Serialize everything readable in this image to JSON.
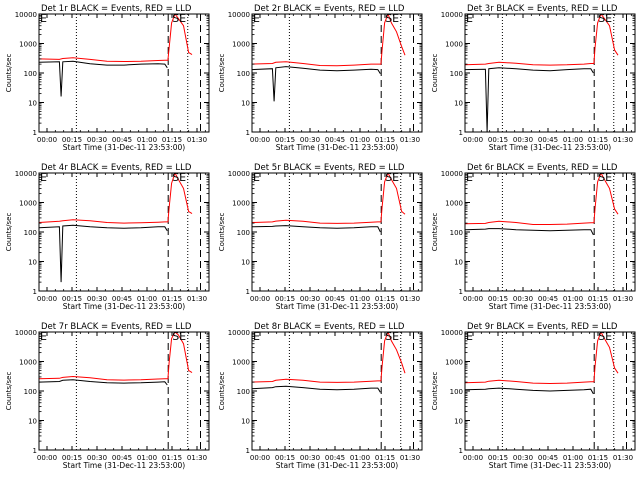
{
  "figure": {
    "x_tick_labels": [
      "00:00",
      "00:15",
      "00:30",
      "00:45",
      "01:00",
      "01:15",
      "01:30"
    ],
    "y_tick_labels": [
      "1",
      "10",
      "100",
      "1000",
      "10000"
    ],
    "xlabel": "Start Time (31-Dec-11 23:53:00)",
    "ylabel": "Counts/sec",
    "markers": {
      "E": "E",
      "SE": "SE"
    },
    "colors": {
      "events": "#000000",
      "lld": "#ff0000",
      "axes": "#000000",
      "background": "#ffffff"
    }
  },
  "chart_data": [
    {
      "type": "line",
      "title": "Det 1r BLACK = Events, RED = LLD",
      "xlabel": "Start Time (31-Dec-11 23:53:00)",
      "ylabel": "Counts/sec",
      "x_unit": "minutes after 23:53:00",
      "xlim": [
        0,
        100
      ],
      "ylim": [
        1,
        10000
      ],
      "yscale": "log",
      "vlines_dotted": [
        22,
        87.5
      ],
      "vlines_dashed": [
        76,
        95
      ],
      "annotations": [
        "E",
        "SE"
      ],
      "series": [
        {
          "name": "Events",
          "color": "#000000",
          "x": [
            0,
            12,
            13,
            14,
            20,
            30,
            40,
            50,
            60,
            70,
            74,
            75.5
          ],
          "y": [
            230,
            240,
            16,
            240,
            250,
            205,
            185,
            185,
            200,
            205,
            200,
            150
          ]
        },
        {
          "name": "LLD",
          "color": "#ff0000",
          "x": [
            0,
            12,
            14,
            20,
            30,
            40,
            50,
            60,
            70,
            74,
            75.8,
            76.5,
            78,
            80,
            82,
            85,
            88,
            90
          ],
          "y": [
            300,
            290,
            310,
            330,
            290,
            250,
            245,
            250,
            265,
            270,
            270,
            700,
            5000,
            10000,
            7000,
            4000,
            500,
            420
          ]
        }
      ]
    },
    {
      "type": "line",
      "title": "Det 2r BLACK = Events, RED = LLD",
      "xlabel": "Start Time (31-Dec-11 23:53:00)",
      "ylabel": "Counts/sec",
      "x_unit": "minutes after 23:53:00",
      "xlim": [
        0,
        100
      ],
      "ylim": [
        1,
        10000
      ],
      "yscale": "log",
      "vlines_dotted": [
        22,
        87.5
      ],
      "vlines_dashed": [
        76,
        95
      ],
      "annotations": [
        "E",
        "SE"
      ],
      "series": [
        {
          "name": "Events",
          "color": "#000000",
          "x": [
            0,
            12,
            13,
            14,
            20,
            30,
            40,
            50,
            60,
            70,
            74,
            75.5
          ],
          "y": [
            130,
            140,
            11,
            150,
            165,
            145,
            125,
            120,
            125,
            135,
            130,
            95
          ]
        },
        {
          "name": "LLD",
          "color": "#ff0000",
          "x": [
            0,
            12,
            14,
            20,
            30,
            40,
            50,
            60,
            70,
            74,
            75.8,
            76.5,
            78,
            80,
            82,
            85,
            88,
            90
          ],
          "y": [
            200,
            210,
            230,
            240,
            210,
            180,
            175,
            185,
            200,
            200,
            200,
            600,
            5000,
            10000,
            5000,
            2500,
            800,
            400
          ]
        }
      ]
    },
    {
      "type": "line",
      "title": "Det 3r BLACK = Events, RED = LLD",
      "xlabel": "Start Time (31-Dec-11 23:53:00)",
      "ylabel": "Counts/sec",
      "x_unit": "minutes after 23:53:00",
      "xlim": [
        0,
        100
      ],
      "ylim": [
        1,
        10000
      ],
      "yscale": "log",
      "vlines_dotted": [
        22,
        87.5
      ],
      "vlines_dashed": [
        76,
        95
      ],
      "annotations": [
        "E",
        "SE"
      ],
      "series": [
        {
          "name": "Events",
          "color": "#000000",
          "x": [
            0,
            12,
            13,
            14,
            20,
            30,
            40,
            50,
            60,
            70,
            74,
            75.5
          ],
          "y": [
            130,
            135,
            1,
            140,
            150,
            140,
            125,
            120,
            130,
            140,
            140,
            100
          ]
        },
        {
          "name": "LLD",
          "color": "#ff0000",
          "x": [
            0,
            12,
            14,
            20,
            30,
            40,
            50,
            60,
            70,
            74,
            75.8,
            76.5,
            78,
            80,
            82,
            85,
            88,
            90
          ],
          "y": [
            190,
            200,
            210,
            230,
            215,
            190,
            185,
            190,
            200,
            210,
            210,
            700,
            5000,
            10000,
            7000,
            4000,
            600,
            400
          ]
        }
      ]
    },
    {
      "type": "line",
      "title": "Det 4r BLACK = Events, RED = LLD",
      "xlabel": "Start Time (31-Dec-11 23:53:00)",
      "ylabel": "Counts/sec",
      "x_unit": "minutes after 23:53:00",
      "xlim": [
        0,
        100
      ],
      "ylim": [
        1,
        10000
      ],
      "yscale": "log",
      "vlines_dotted": [
        22,
        87.5
      ],
      "vlines_dashed": [
        76,
        95
      ],
      "annotations": [
        "E",
        "SE"
      ],
      "series": [
        {
          "name": "Events",
          "color": "#000000",
          "x": [
            0,
            12,
            13,
            14,
            20,
            30,
            40,
            50,
            60,
            70,
            74,
            75.5
          ],
          "y": [
            140,
            150,
            2,
            160,
            170,
            150,
            140,
            135,
            140,
            150,
            150,
            110
          ]
        },
        {
          "name": "LLD",
          "color": "#ff0000",
          "x": [
            0,
            12,
            14,
            20,
            30,
            40,
            50,
            60,
            70,
            74,
            75.8,
            76.5,
            78,
            80,
            82,
            85,
            88,
            90
          ],
          "y": [
            210,
            230,
            240,
            260,
            240,
            210,
            200,
            205,
            215,
            220,
            220,
            650,
            4500,
            10000,
            6000,
            3000,
            500,
            420
          ]
        }
      ]
    },
    {
      "type": "line",
      "title": "Det 5r BLACK = Events, RED = LLD",
      "xlabel": "Start Time (31-Dec-11 23:53:00)",
      "ylabel": "Counts/sec",
      "x_unit": "minutes after 23:53:00",
      "xlim": [
        0,
        100
      ],
      "ylim": [
        1,
        10000
      ],
      "yscale": "log",
      "vlines_dotted": [
        22,
        87.5
      ],
      "vlines_dashed": [
        76,
        95
      ],
      "annotations": [
        "E",
        "SE"
      ],
      "series": [
        {
          "name": "Events",
          "color": "#000000",
          "x": [
            0,
            12,
            14,
            20,
            30,
            40,
            50,
            60,
            70,
            74,
            75.5
          ],
          "y": [
            150,
            155,
            160,
            165,
            150,
            140,
            135,
            140,
            150,
            150,
            100
          ]
        },
        {
          "name": "LLD",
          "color": "#ff0000",
          "x": [
            0,
            12,
            14,
            20,
            30,
            40,
            50,
            60,
            70,
            74,
            75.8,
            76.5,
            78,
            80,
            82,
            85,
            88,
            90
          ],
          "y": [
            210,
            220,
            235,
            250,
            230,
            200,
            195,
            200,
            215,
            220,
            220,
            700,
            5000,
            10000,
            6000,
            3000,
            500,
            400
          ]
        }
      ]
    },
    {
      "type": "line",
      "title": "Det 6r BLACK = Events, RED = LLD",
      "xlabel": "Start Time (31-Dec-11 23:53:00)",
      "ylabel": "Counts/sec",
      "x_unit": "minutes after 23:53:00",
      "xlim": [
        0,
        100
      ],
      "ylim": [
        1,
        10000
      ],
      "yscale": "log",
      "vlines_dotted": [
        22,
        87.5
      ],
      "vlines_dashed": [
        76,
        95
      ],
      "annotations": [
        "E",
        "SE"
      ],
      "series": [
        {
          "name": "Events",
          "color": "#000000",
          "x": [
            0,
            12,
            14,
            20,
            30,
            40,
            50,
            60,
            70,
            74,
            75.5
          ],
          "y": [
            120,
            125,
            130,
            130,
            120,
            115,
            110,
            115,
            120,
            120,
            80
          ]
        },
        {
          "name": "LLD",
          "color": "#ff0000",
          "x": [
            0,
            12,
            14,
            20,
            30,
            40,
            50,
            60,
            70,
            74,
            75.8,
            76.5,
            78,
            80,
            82,
            85,
            88,
            90
          ],
          "y": [
            190,
            195,
            210,
            230,
            210,
            180,
            180,
            185,
            200,
            205,
            205,
            600,
            5000,
            10000,
            6000,
            3000,
            600,
            400
          ]
        }
      ]
    },
    {
      "type": "line",
      "title": "Det 7r BLACK = Events, RED = LLD",
      "xlabel": "Start Time (31-Dec-11 23:53:00)",
      "ylabel": "Counts/sec",
      "x_unit": "minutes after 23:53:00",
      "xlim": [
        0,
        100
      ],
      "ylim": [
        1,
        10000
      ],
      "yscale": "log",
      "vlines_dotted": [
        22,
        87.5
      ],
      "vlines_dashed": [
        76,
        95
      ],
      "annotations": [
        "E",
        "SE"
      ],
      "series": [
        {
          "name": "Events",
          "color": "#000000",
          "x": [
            0,
            12,
            14,
            20,
            30,
            40,
            50,
            60,
            70,
            74,
            75.5
          ],
          "y": [
            200,
            210,
            230,
            240,
            210,
            190,
            185,
            190,
            200,
            205,
            160
          ]
        },
        {
          "name": "LLD",
          "color": "#ff0000",
          "x": [
            0,
            12,
            14,
            20,
            30,
            40,
            50,
            60,
            70,
            74,
            75.8,
            76.5,
            78,
            80,
            82,
            85,
            88,
            90
          ],
          "y": [
            260,
            270,
            290,
            310,
            280,
            240,
            235,
            240,
            255,
            260,
            260,
            900,
            6000,
            10000,
            8000,
            4000,
            500,
            420
          ]
        }
      ]
    },
    {
      "type": "line",
      "title": "Det 8r BLACK = Events, RED = LLD",
      "xlabel": "Start Time (31-Dec-11 23:53:00)",
      "ylabel": "Counts/sec",
      "x_unit": "minutes after 23:53:00",
      "xlim": [
        0,
        100
      ],
      "ylim": [
        1,
        10000
      ],
      "yscale": "log",
      "vlines_dotted": [
        22,
        87.5
      ],
      "vlines_dashed": [
        76,
        95
      ],
      "annotations": [
        "E",
        "SE"
      ],
      "series": [
        {
          "name": "Events",
          "color": "#000000",
          "x": [
            0,
            12,
            14,
            20,
            30,
            40,
            50,
            60,
            70,
            74,
            75.5
          ],
          "y": [
            120,
            130,
            140,
            145,
            130,
            115,
            110,
            115,
            125,
            125,
            90
          ]
        },
        {
          "name": "LLD",
          "color": "#ff0000",
          "x": [
            0,
            12,
            14,
            20,
            30,
            40,
            50,
            60,
            70,
            74,
            75.8,
            76.5,
            78,
            80,
            82,
            85,
            88,
            90
          ],
          "y": [
            200,
            210,
            230,
            250,
            230,
            200,
            195,
            200,
            215,
            220,
            220,
            700,
            5000,
            10000,
            5000,
            2500,
            900,
            400
          ]
        }
      ]
    },
    {
      "type": "line",
      "title": "Det 9r BLACK = Events, RED = LLD",
      "xlabel": "Start Time (31-Dec-11 23:53:00)",
      "ylabel": "Counts/sec",
      "x_unit": "minutes after 23:53:00",
      "xlim": [
        0,
        100
      ],
      "ylim": [
        1,
        10000
      ],
      "yscale": "log",
      "vlines_dotted": [
        22,
        87.5
      ],
      "vlines_dashed": [
        76,
        95
      ],
      "annotations": [
        "E",
        "SE"
      ],
      "series": [
        {
          "name": "Events",
          "color": "#000000",
          "x": [
            0,
            12,
            14,
            20,
            30,
            40,
            50,
            60,
            70,
            74,
            75.5
          ],
          "y": [
            110,
            115,
            120,
            125,
            115,
            105,
            100,
            105,
            110,
            115,
            80
          ]
        },
        {
          "name": "LLD",
          "color": "#ff0000",
          "x": [
            0,
            12,
            14,
            20,
            30,
            40,
            50,
            60,
            70,
            74,
            75.8,
            76.5,
            78,
            80,
            82,
            85,
            88,
            90
          ],
          "y": [
            190,
            200,
            215,
            230,
            210,
            185,
            180,
            185,
            200,
            205,
            205,
            650,
            5000,
            10000,
            6000,
            3000,
            600,
            400
          ]
        }
      ]
    }
  ]
}
